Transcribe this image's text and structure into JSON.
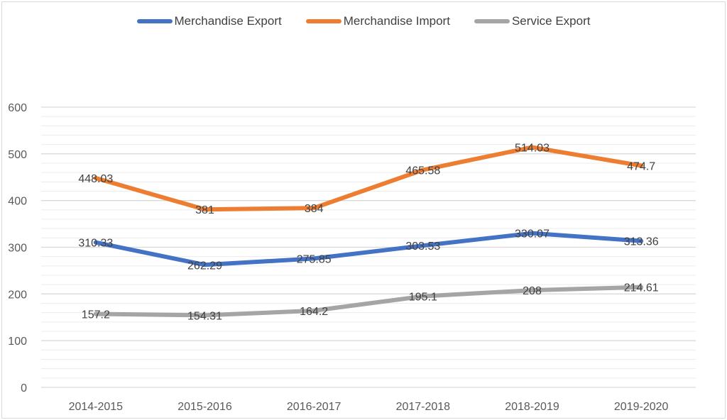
{
  "chart_data": {
    "type": "line",
    "title": "",
    "xlabel": "",
    "ylabel": "",
    "categories": [
      "2014-2015",
      "2015-2016",
      "2016-2017",
      "2017-2018",
      "2018-2019",
      "2019-2020"
    ],
    "series": [
      {
        "name": "Merchandise Export",
        "color": "#4472c4",
        "values": [
          310.33,
          262.29,
          275.85,
          303.53,
          330.07,
          313.36
        ],
        "labels": [
          "310.33",
          "262.29",
          "275.85",
          "303.53",
          "330.07",
          "313.36"
        ]
      },
      {
        "name": "Merchandise Import",
        "color": "#ed7d31",
        "values": [
          448.03,
          381,
          384,
          465.58,
          514.03,
          474.7
        ],
        "labels": [
          "448.03",
          "381",
          "384",
          "465.58",
          "514.03",
          "474.7"
        ]
      },
      {
        "name": "Service Export",
        "color": "#a5a5a5",
        "values": [
          157.2,
          154.31,
          164.2,
          195.1,
          208,
          214.61
        ],
        "labels": [
          "157.2",
          "154.31",
          "164.2",
          "195.1",
          "208",
          "214.61"
        ]
      }
    ],
    "ylim": [
      0,
      600
    ],
    "yticks": [
      0,
      100,
      200,
      300,
      400,
      500,
      600
    ],
    "ytick_labels": [
      "0",
      "100",
      "200",
      "300",
      "400",
      "500",
      "600"
    ],
    "minor_gridline_step": 20,
    "grid": true,
    "legend_position": "top"
  }
}
